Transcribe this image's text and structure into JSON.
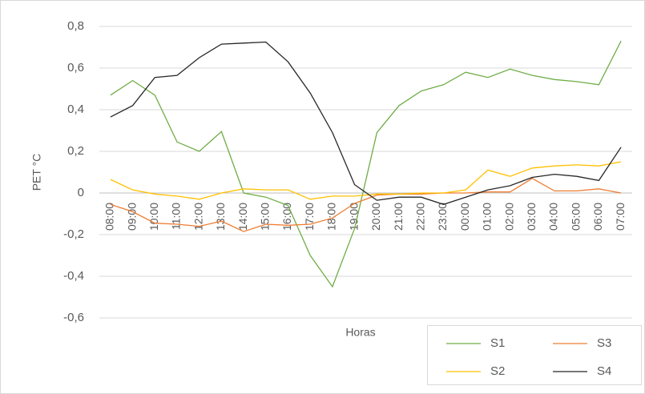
{
  "chart_data": {
    "type": "line",
    "x_label": "Horas",
    "y_label": "PET °C",
    "categories": [
      "08:00",
      "09:00",
      "10:00",
      "11:00",
      "12:00",
      "13:00",
      "14:00",
      "15:00",
      "16:00",
      "17:00",
      "18:00",
      "19:00",
      "20:00",
      "21:00",
      "22:00",
      "23:00",
      "00:00",
      "01:00",
      "02:00",
      "03:00",
      "04:00",
      "05:00",
      "06:00",
      "07:00"
    ],
    "series": [
      {
        "name": "S1",
        "color": "#70ad47",
        "values": [
          0.47,
          0.54,
          0.47,
          0.245,
          0.2,
          0.295,
          0,
          -0.02,
          -0.06,
          -0.3,
          -0.45,
          -0.17,
          0.29,
          0.42,
          0.49,
          0.52,
          0.58,
          0.555,
          0.595,
          0.565,
          0.545,
          0.535,
          0.52,
          0.73
        ]
      },
      {
        "name": "S3",
        "color": "#ed7d31",
        "values": [
          -0.055,
          -0.09,
          -0.145,
          -0.15,
          -0.16,
          -0.135,
          -0.185,
          -0.15,
          -0.155,
          -0.15,
          -0.12,
          -0.05,
          -0.01,
          -0.005,
          -0.005,
          0,
          0,
          0.005,
          0.005,
          0.07,
          0.01,
          0.01,
          0.02,
          0
        ]
      },
      {
        "name": "S2",
        "color": "#ffc000",
        "values": [
          0.065,
          0.015,
          -0.005,
          -0.015,
          -0.03,
          0,
          0.02,
          0.015,
          0.015,
          -0.03,
          -0.015,
          -0.015,
          -0.005,
          -0.005,
          0,
          0,
          0.015,
          0.11,
          0.08,
          0.12,
          0.13,
          0.135,
          0.13,
          0.15
        ]
      },
      {
        "name": "S4",
        "color": "#262626",
        "values": [
          0.365,
          0.42,
          0.555,
          0.565,
          0.65,
          0.715,
          0.72,
          0.725,
          0.63,
          0.48,
          0.29,
          0.04,
          -0.035,
          -0.02,
          -0.02,
          -0.055,
          -0.02,
          0.015,
          0.035,
          0.075,
          0.09,
          0.08,
          0.06,
          0.22
        ]
      }
    ],
    "ylim": [
      -0.6,
      0.8
    ],
    "yticks": [
      {
        "value": -0.6,
        "label": "-0,6"
      },
      {
        "value": -0.4,
        "label": "-0,4"
      },
      {
        "value": -0.2,
        "label": "-0,2"
      },
      0,
      {
        "value": 0.2,
        "label": "0,2"
      },
      {
        "value": 0.4,
        "label": "0,4"
      },
      {
        "value": 0.6,
        "label": "0,6"
      },
      {
        "value": 0.8,
        "label": "0,8"
      }
    ],
    "grid": true,
    "legend": "bottom-right"
  }
}
